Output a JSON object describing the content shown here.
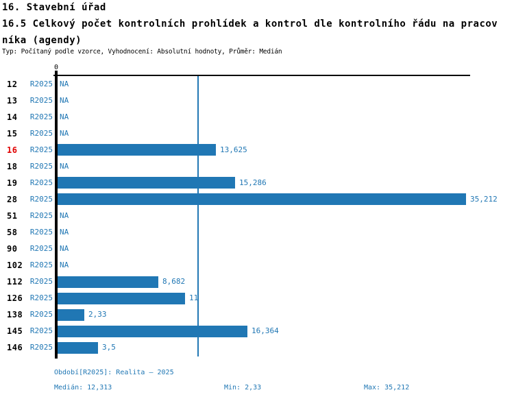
{
  "header": {
    "title_line1": "16. Stavební úřad",
    "title_line2": "16.5 Celkový počet kontrolních prohlídek a kontrol dle kontrolního řádu na pracov",
    "title_line3": "níka (agendy)",
    "meta": "Typ: Počítaný podle vzorce, Vyhodnocení: Absolutní hodnoty, Průměr: Medián"
  },
  "chart_data": {
    "type": "bar",
    "orientation": "horizontal",
    "title": "16.5 Celkový počet kontrolních prohlídek a kontrol dle kontrolního řádu na pracovníka (agendy)",
    "axis": {
      "zero_label": "0",
      "min": 0,
      "max": 35.212,
      "grid": false
    },
    "median_line_value": 12.313,
    "series_name": "R2025",
    "rows": [
      {
        "id": "12",
        "period": "R2025",
        "value": null,
        "label": "NA",
        "highlight": false
      },
      {
        "id": "13",
        "period": "R2025",
        "value": null,
        "label": "NA",
        "highlight": false
      },
      {
        "id": "14",
        "period": "R2025",
        "value": null,
        "label": "NA",
        "highlight": false
      },
      {
        "id": "15",
        "period": "R2025",
        "value": null,
        "label": "NA",
        "highlight": false
      },
      {
        "id": "16",
        "period": "R2025",
        "value": 13.625,
        "label": "13,625",
        "highlight": true
      },
      {
        "id": "18",
        "period": "R2025",
        "value": null,
        "label": "NA",
        "highlight": false
      },
      {
        "id": "19",
        "period": "R2025",
        "value": 15.286,
        "label": "15,286",
        "highlight": false
      },
      {
        "id": "28",
        "period": "R2025",
        "value": 35.212,
        "label": "35,212",
        "highlight": false
      },
      {
        "id": "51",
        "period": "R2025",
        "value": null,
        "label": "NA",
        "highlight": false
      },
      {
        "id": "58",
        "period": "R2025",
        "value": null,
        "label": "NA",
        "highlight": false
      },
      {
        "id": "90",
        "period": "R2025",
        "value": null,
        "label": "NA",
        "highlight": false
      },
      {
        "id": "102",
        "period": "R2025",
        "value": null,
        "label": "NA",
        "highlight": false
      },
      {
        "id": "112",
        "period": "R2025",
        "value": 8.682,
        "label": "8,682",
        "highlight": false
      },
      {
        "id": "126",
        "period": "R2025",
        "value": 11,
        "label": "11",
        "highlight": false
      },
      {
        "id": "138",
        "period": "R2025",
        "value": 2.33,
        "label": "2,33",
        "highlight": false
      },
      {
        "id": "145",
        "period": "R2025",
        "value": 16.364,
        "label": "16,364",
        "highlight": false
      },
      {
        "id": "146",
        "period": "R2025",
        "value": 3.5,
        "label": "3,5",
        "highlight": false
      }
    ],
    "stats": {
      "median": 12.313,
      "min": 2.33,
      "max": 35.212
    },
    "footer": {
      "period_line": "Období[R2025]: Realita – 2025",
      "median": "Medián: 12,313",
      "min": "Min: 2,33",
      "max": "Max: 35,212"
    }
  },
  "colors": {
    "bar": "#2077b4",
    "text_blue": "#2077b4",
    "highlight_red": "#e00000",
    "axis_black": "#000000"
  }
}
